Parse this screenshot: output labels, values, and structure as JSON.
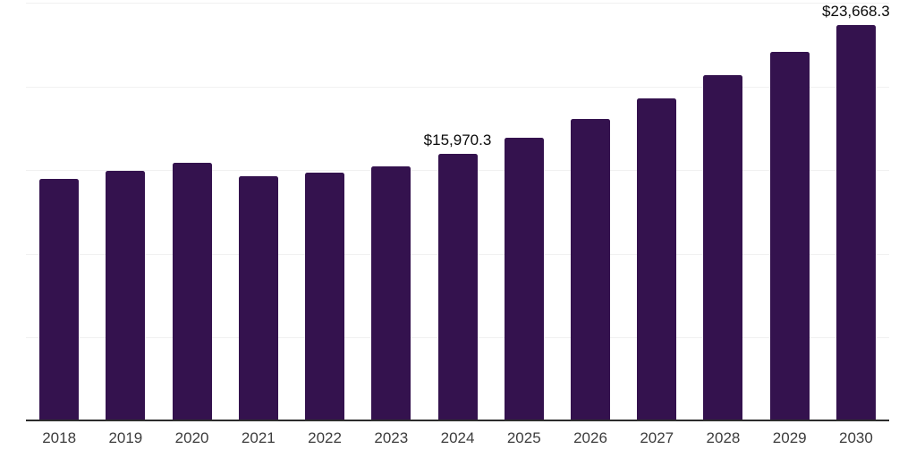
{
  "chart_data": {
    "type": "bar",
    "title": "",
    "xlabel": "",
    "ylabel": "",
    "categories": [
      "2018",
      "2019",
      "2020",
      "2021",
      "2022",
      "2023",
      "2024",
      "2025",
      "2026",
      "2027",
      "2028",
      "2029",
      "2030"
    ],
    "values": [
      14480,
      14960,
      15440,
      14640,
      14850,
      15220,
      15970.3,
      16930,
      18050,
      19270,
      20650,
      22040,
      23668.3
    ],
    "data_labels": {
      "2024": "$15,970.3",
      "2030": "$23,668.3"
    },
    "unit_prefix": "$",
    "ylim": [
      0,
      25000
    ],
    "gridline_step": 5000,
    "grid": "horizontal",
    "y_axis_labels_visible": false,
    "legend_position": "none",
    "colors": {
      "bar": "#34124E",
      "gridline": "#f1f1f1",
      "axis_line": "#2d2d2d",
      "tick_label": "#3d3d3d",
      "data_label": "#0a0a0a",
      "background": "#ffffff"
    }
  }
}
